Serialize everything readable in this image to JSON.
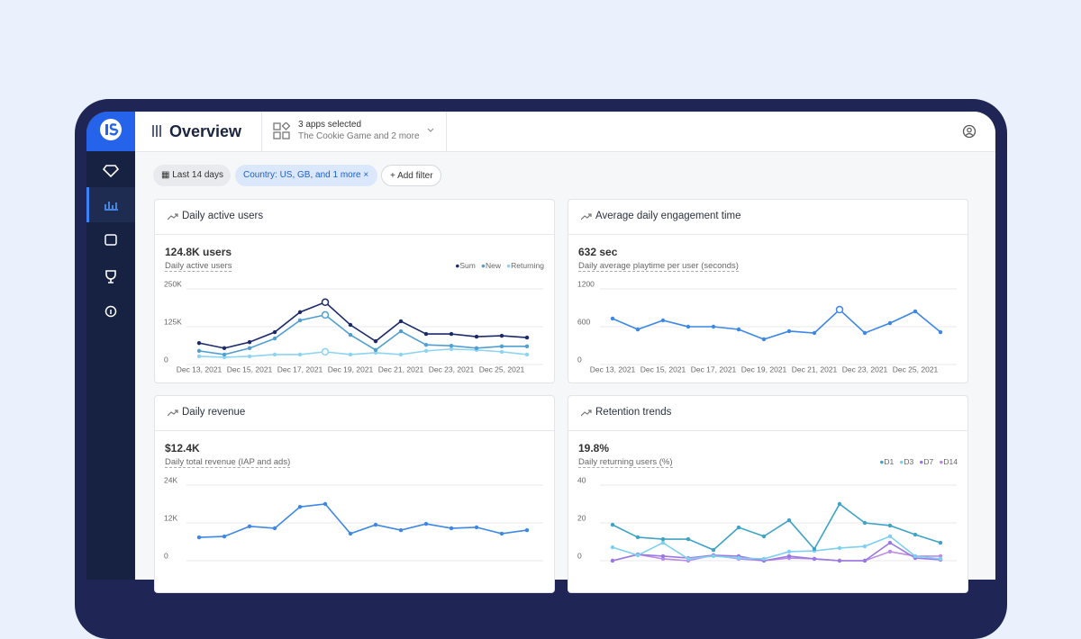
{
  "header": {
    "title": "Overview",
    "apps_selected": "3 apps selected",
    "apps_detail": "The Cookie Game and 2 more"
  },
  "filters": {
    "date": "Last 14 days",
    "country": "Country: US, GB, and 1 more",
    "add": "+ Add filter"
  },
  "chart_data": [
    {
      "type": "line",
      "title": "Daily active users",
      "metric": "124.8K users",
      "subtitle": "Daily active users",
      "categories": [
        "Dec 13, 2021",
        null,
        "Dec 15, 2021",
        null,
        "Dec 17, 2021",
        null,
        "Dec 19, 2021",
        null,
        "Dec 21, 2021",
        null,
        "Dec 23, 2021",
        null,
        "Dec 25, 2021",
        null
      ],
      "series": [
        {
          "name": "Sum",
          "color": "#1b2a6b",
          "values": [
            71000,
            54000,
            74000,
            107000,
            173000,
            206000,
            131000,
            77000,
            143000,
            101000,
            101000,
            92000,
            95000,
            89000
          ]
        },
        {
          "name": "New",
          "color": "#4f9fd2",
          "values": [
            45000,
            33000,
            54000,
            86000,
            146000,
            164000,
            98000,
            48000,
            110000,
            65000,
            62000,
            54000,
            60000,
            60000
          ]
        },
        {
          "name": "Returning",
          "color": "#8dd3f2",
          "values": [
            27000,
            24000,
            27000,
            33000,
            33000,
            42000,
            33000,
            39000,
            33000,
            45000,
            51000,
            48000,
            42000,
            33000
          ]
        }
      ],
      "ylim": [
        0,
        250000
      ],
      "yticks": [
        0,
        {
          "value": 125000,
          "label": "125K"
        },
        {
          "value": 250000,
          "label": "250K"
        }
      ],
      "grid": true,
      "highlight_index": 5
    },
    {
      "type": "line",
      "title": "Average daily engagement time",
      "metric": "632 sec",
      "subtitle": "Daily average playtime per user (seconds)",
      "categories": [
        "Dec 13, 2021",
        null,
        "Dec 15, 2021",
        null,
        "Dec 17, 2021",
        null,
        "Dec 19, 2021",
        null,
        "Dec 21, 2021",
        null,
        "Dec 23, 2021",
        null,
        "Dec 25, 2021",
        null
      ],
      "values": [
        729,
        557,
        700,
        600,
        600,
        557,
        400,
        529,
        500,
        871,
        500,
        657,
        843,
        514
      ],
      "color": "#3d87e6",
      "ylim": [
        0,
        1200
      ],
      "yticks": [
        0,
        600,
        1200
      ],
      "grid": true,
      "highlight_index": 9
    },
    {
      "type": "line",
      "title": "Daily revenue",
      "metric": "$12.4K",
      "subtitle": "Daily total revenue (IAP and ads)",
      "values": [
        7400,
        7700,
        10900,
        10300,
        17100,
        18000,
        8600,
        11400,
        9700,
        11700,
        10300,
        10600,
        8600,
        9700
      ],
      "color": "#3d87e6",
      "ylim": [
        0,
        24000
      ],
      "yticks": [
        0,
        {
          "value": 12000,
          "label": "12K"
        },
        {
          "value": 24000,
          "label": "24K"
        }
      ],
      "grid": true
    },
    {
      "type": "line",
      "title": "Retention trends",
      "metric": "19.8%",
      "subtitle": "Daily returning users (%)",
      "series": [
        {
          "name": "D1",
          "color": "#3fa3c6",
          "values": [
            19,
            12.4,
            11.4,
            11.4,
            5.7,
            17.6,
            12.9,
            21.4,
            6.2,
            30,
            20,
            18.6,
            13.8,
            9.5
          ]
        },
        {
          "name": "D3",
          "color": "#7fcff0",
          "values": [
            7.1,
            2.9,
            9.5,
            1,
            2.4,
            1.4,
            1,
            4.8,
            5.2,
            6.7,
            7.6,
            12.9,
            2.4,
            1
          ]
        },
        {
          "name": "D7",
          "color": "#9a7ae0",
          "values": [
            0,
            3.3,
            2.4,
            1.4,
            2.9,
            2.4,
            0,
            2.4,
            1,
            0,
            0,
            9.5,
            1.4,
            0.5
          ]
        },
        {
          "name": "D14",
          "color": "#bb8ce6",
          "values": [
            0,
            3.3,
            1,
            0,
            2.9,
            1,
            0,
            1.4,
            1,
            0,
            0,
            4.8,
            2.4,
            2.4
          ]
        }
      ],
      "ylim": [
        0,
        40
      ],
      "yticks": [
        0,
        20,
        40
      ],
      "grid": true
    }
  ]
}
